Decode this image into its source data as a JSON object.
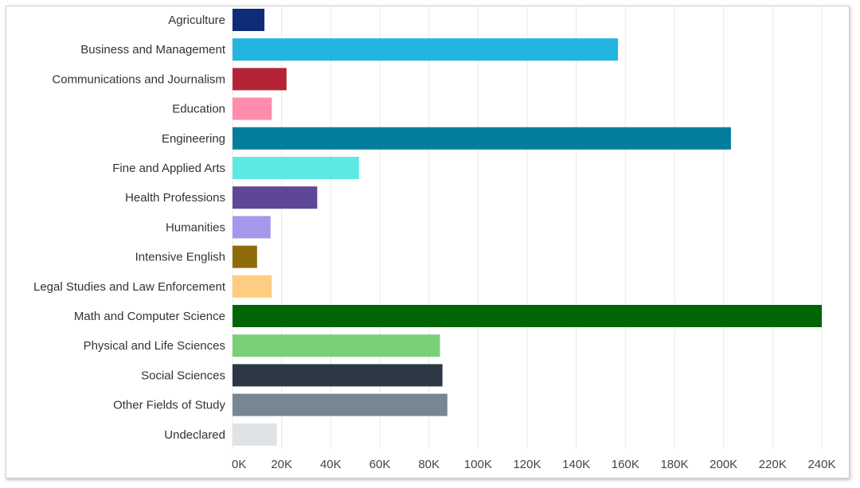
{
  "chart_data": {
    "type": "bar",
    "orientation": "horizontal",
    "title": "",
    "xlabel": "",
    "ylabel": "",
    "xlim": [
      0,
      240000
    ],
    "grid": true,
    "categories": [
      "Agriculture",
      "Business and Management",
      "Communications and Journalism",
      "Education",
      "Engineering",
      "Fine and Applied Arts",
      "Health Professions",
      "Humanities",
      "Intensive English",
      "Legal Studies and Law Enforcement",
      "Math and Computer Science",
      "Physical and Life Sciences",
      "Social Sciences",
      "Other Fields of Study",
      "Undeclared"
    ],
    "values": [
      13000,
      157000,
      22000,
      16000,
      203000,
      51500,
      34500,
      15500,
      10000,
      16000,
      240000,
      84500,
      85500,
      87500,
      18000
    ],
    "colors": [
      "#0f2c78",
      "#22b5e0",
      "#b52436",
      "#ff8bad",
      "#027e9c",
      "#5ce9e3",
      "#5f4697",
      "#a797ec",
      "#8f6b0a",
      "#ffcc82",
      "#006502",
      "#7ad077",
      "#2c3844",
      "#778692",
      "#e0e3e6"
    ],
    "xticks": [
      "0K",
      "20K",
      "40K",
      "60K",
      "80K",
      "100K",
      "120K",
      "140K",
      "160K",
      "180K",
      "200K",
      "220K",
      "240K"
    ]
  }
}
